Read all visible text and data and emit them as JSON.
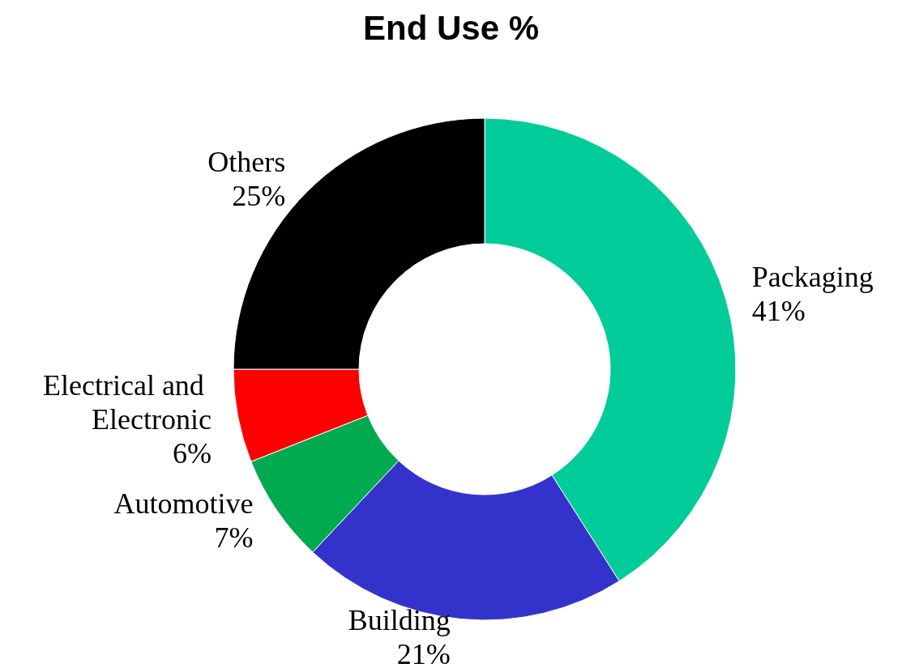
{
  "chart_data": {
    "type": "donut",
    "title": "End Use %",
    "categories": [
      "Packaging",
      "Building",
      "Automotive",
      "Electrical and Electronic",
      "Others"
    ],
    "values": [
      41,
      21,
      7,
      6,
      25
    ],
    "colors": [
      "#00cc99",
      "#3333cc",
      "#00aa4f",
      "#ff0000",
      "#000000"
    ],
    "value_labels": [
      "41%",
      "21%",
      "7%",
      "6%",
      "25%"
    ],
    "legend": false
  }
}
